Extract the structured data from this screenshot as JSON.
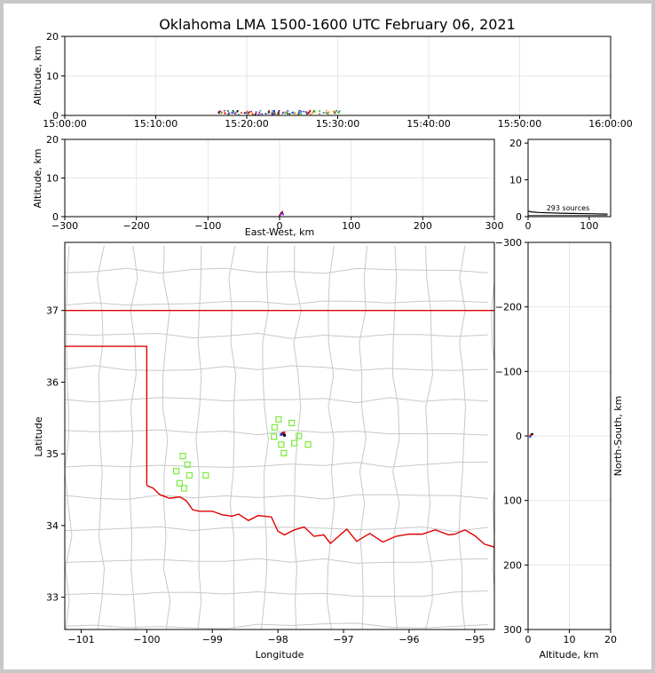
{
  "chart_data": [
    {
      "type": "scatter",
      "name": "time-altitude",
      "title": "Oklahoma LMA 1500-1600 UTC February 06, 2021",
      "ylabel": "Altitude, km",
      "ylim": [
        0,
        20
      ],
      "yticks": [
        "0",
        "10",
        "20"
      ],
      "xticks": [
        "15:00:00",
        "15:10:00",
        "15:20:00",
        "15:30:00",
        "15:40:00",
        "15:50:00",
        "16:00:00"
      ],
      "xlim_minutes": [
        0,
        60
      ],
      "source_time_range_minutes": [
        16.8,
        30.2
      ],
      "source_altitude_range_km": [
        0.2,
        1.2
      ]
    },
    {
      "type": "scatter",
      "name": "east-west-altitude",
      "xlabel": "East-West, km",
      "ylabel": "Altitude, km",
      "xlim": [
        -300,
        300
      ],
      "ylim": [
        0,
        20
      ],
      "xticks": [
        "−300",
        "−200",
        "−100",
        "0",
        "100",
        "200",
        "300"
      ],
      "yticks": [
        "0",
        "10",
        "20"
      ],
      "points": [
        [
          0,
          0.3
        ],
        [
          1,
          0.5
        ],
        [
          2,
          0.8
        ],
        [
          3,
          1.0
        ],
        [
          4,
          1.2
        ],
        [
          5,
          0.6
        ]
      ]
    },
    {
      "type": "line",
      "name": "altitude-histogram",
      "annotation": "293 sources",
      "xlim": [
        0,
        135
      ],
      "ylim": [
        0,
        21
      ],
      "xticks": [
        "0",
        "100"
      ],
      "yticks": [
        "0",
        "10",
        "20"
      ],
      "total_sources": 293
    },
    {
      "type": "map",
      "name": "plan-view",
      "xlabel": "Longitude",
      "ylabel": "Latitude",
      "xlim": [
        -101.25,
        -94.7
      ],
      "ylim": [
        32.55,
        37.95
      ],
      "xticks": [
        "−101",
        "−100",
        "−99",
        "−98",
        "−97",
        "−96",
        "−95"
      ],
      "yticks": [
        "33",
        "34",
        "35",
        "36",
        "37"
      ],
      "stations": [
        [
          -97.99,
          35.48
        ],
        [
          -98.05,
          35.37
        ],
        [
          -97.79,
          35.43
        ],
        [
          -98.06,
          35.24
        ],
        [
          -97.68,
          35.25
        ],
        [
          -97.95,
          35.13
        ],
        [
          -97.75,
          35.15
        ],
        [
          -97.54,
          35.13
        ],
        [
          -97.91,
          35.01
        ],
        [
          -99.45,
          34.97
        ],
        [
          -99.38,
          34.85
        ],
        [
          -99.55,
          34.76
        ],
        [
          -99.35,
          34.7
        ],
        [
          -99.1,
          34.7
        ],
        [
          -99.5,
          34.59
        ],
        [
          -99.43,
          34.52
        ]
      ],
      "sources_center": [
        -97.93,
        35.28
      ],
      "boundary_color": "#e00000",
      "county_color": "#c8c8c8",
      "station_color": "#7aeb3a"
    },
    {
      "type": "scatter",
      "name": "altitude-north-south",
      "xlabel": "Altitude, km",
      "ylabel": "North-South, km",
      "xlim": [
        0,
        20
      ],
      "ylim": [
        -300,
        300
      ],
      "xticks": [
        "0",
        "10",
        "20"
      ],
      "yticks": [
        "−300",
        "−200",
        "−100",
        "0",
        "100",
        "200",
        "300"
      ],
      "points": [
        [
          0.4,
          0
        ],
        [
          0.7,
          2
        ],
        [
          1.0,
          3
        ],
        [
          0.5,
          -1
        ]
      ]
    }
  ]
}
